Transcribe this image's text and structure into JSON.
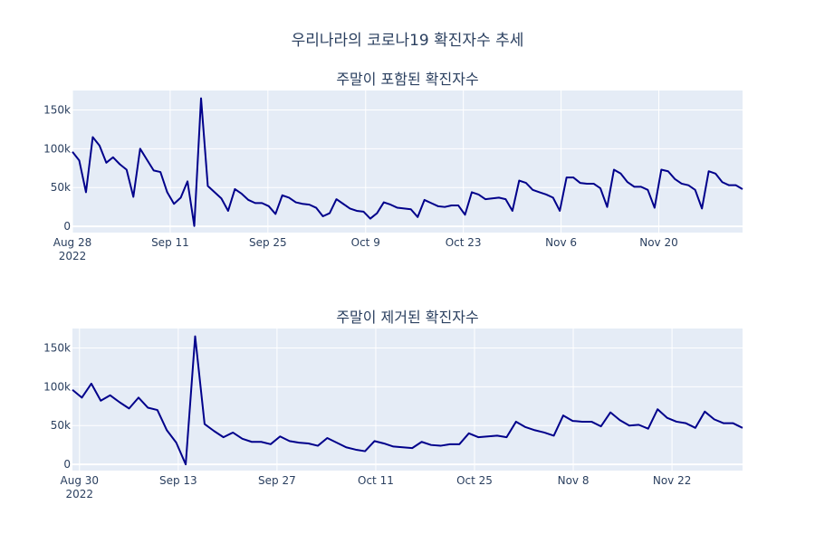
{
  "title": "우리나라의 코로나19 확진자수 추세",
  "colors": {
    "line": "#00008b",
    "plot_bg": "#e5ecf6",
    "grid": "#ffffff",
    "text": "#2a3f5f"
  },
  "chart_data": [
    {
      "type": "line",
      "title": "주말이 포함된 확진자수",
      "x_start": "2022-08-28",
      "x_end": "2022-12-02",
      "x_tick_labels": [
        "Aug 28",
        "Sep 11",
        "Sep 25",
        "Oct 9",
        "Oct 23",
        "Nov 6",
        "Nov 20"
      ],
      "x_year_label": "2022",
      "y_tick_labels": [
        "0",
        "50k",
        "100k",
        "150k"
      ],
      "ylim": [
        -8000,
        175000
      ],
      "grid": true,
      "series": [
        {
          "values": [
            96000,
            85000,
            44000,
            115000,
            104000,
            82000,
            89000,
            80000,
            73000,
            38000,
            100000,
            86000,
            72000,
            70000,
            44000,
            29000,
            37000,
            58000,
            500,
            165000,
            52000,
            44000,
            36000,
            20000,
            48000,
            42000,
            34000,
            30000,
            30000,
            26000,
            16000,
            40000,
            37000,
            31000,
            29000,
            28000,
            24000,
            13000,
            17000,
            35000,
            29000,
            23000,
            20000,
            19000,
            10000,
            17000,
            31000,
            28000,
            24000,
            23000,
            22000,
            12000,
            34000,
            30000,
            26000,
            25000,
            27000,
            27000,
            15000,
            44000,
            41000,
            35000,
            36000,
            37000,
            35000,
            20000,
            59000,
            56000,
            47000,
            44000,
            41000,
            37000,
            20000,
            63000,
            63000,
            56000,
            55000,
            55000,
            49000,
            25000,
            73000,
            68000,
            57000,
            51000,
            51000,
            47000,
            24000,
            73000,
            71000,
            61000,
            55000,
            53000,
            47000,
            23000,
            71000,
            68000,
            57000,
            53000,
            53000,
            48000
          ]
        }
      ]
    },
    {
      "type": "line",
      "title": "주말이 제거된 확진자수",
      "x_start": "2022-08-29",
      "x_end": "2022-12-02",
      "x_tick_labels": [
        "Aug 30",
        "Sep 13",
        "Sep 27",
        "Oct 11",
        "Oct 25",
        "Nov 8",
        "Nov 22"
      ],
      "x_year_label": "2022",
      "y_tick_labels": [
        "0",
        "50k",
        "100k",
        "150k"
      ],
      "ylim": [
        -8000,
        175000
      ],
      "grid": true,
      "series": [
        {
          "values": [
            96000,
            86000,
            104000,
            82000,
            89000,
            80000,
            72000,
            86000,
            73000,
            70000,
            44000,
            28000,
            0,
            165000,
            52000,
            43000,
            35000,
            41000,
            33000,
            29000,
            29000,
            26000,
            36000,
            30000,
            28000,
            27000,
            24000,
            34000,
            28000,
            22000,
            19000,
            17000,
            30000,
            27000,
            23000,
            22000,
            21000,
            29000,
            25000,
            24000,
            26000,
            26000,
            40000,
            35000,
            36000,
            37000,
            35000,
            55000,
            48000,
            44000,
            41000,
            37000,
            63000,
            56000,
            55000,
            55000,
            49000,
            67000,
            57000,
            50000,
            51000,
            46000,
            71000,
            60000,
            55000,
            53000,
            47000,
            68000,
            58000,
            53000,
            53000,
            47000
          ]
        }
      ]
    }
  ]
}
